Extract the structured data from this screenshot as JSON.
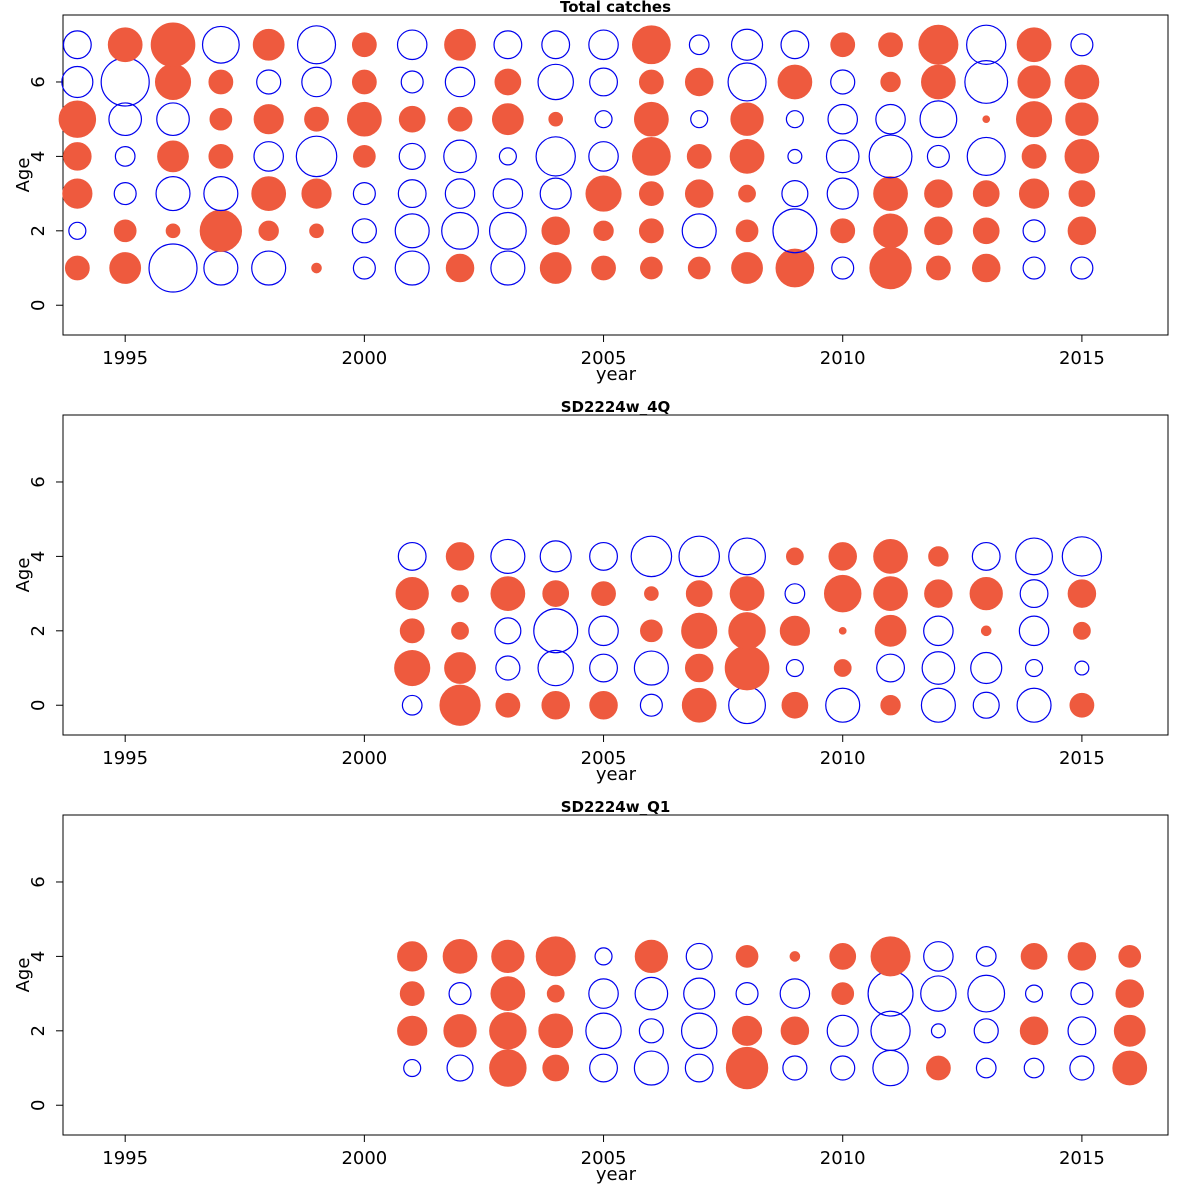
{
  "chart_data": [
    {
      "type": "scatter",
      "title": "Total catches",
      "xlabel": "year",
      "ylabel": "Age",
      "xlim": [
        1993.7,
        2016.8
      ],
      "ylim": [
        -0.8,
        7.8
      ],
      "xticks": [
        1995,
        2000,
        2005,
        2010,
        2015
      ],
      "yticks": [
        0,
        2,
        4,
        6
      ],
      "encoding": "bubble area ~ |residual|; filled red-orange = positive, open blue = negative",
      "colors": {
        "positive": "#EE5A3E",
        "negative": "#0000EE"
      },
      "years": [
        1994,
        1995,
        1996,
        1997,
        1998,
        1999,
        2000,
        2001,
        2002,
        2003,
        2004,
        2005,
        2006,
        2007,
        2008,
        2009,
        2010,
        2011,
        2012,
        2013,
        2014,
        2015
      ],
      "ages": [
        1,
        2,
        3,
        4,
        5,
        6,
        7
      ],
      "values": [
        [
          0.6,
          1.0,
          -2.4,
          -1.2,
          -1.2,
          0.1,
          -0.5,
          -1.2,
          0.8,
          -1.2,
          1.0,
          0.6,
          0.5,
          0.5,
          1.0,
          1.5,
          -0.5,
          1.8,
          0.6,
          0.8,
          -0.5,
          -0.5
        ],
        [
          -0.3,
          0.5,
          0.2,
          1.8,
          0.4,
          0.2,
          -0.6,
          -1.2,
          -1.4,
          -1.4,
          0.8,
          0.4,
          0.6,
          -1.2,
          0.5,
          -2.0,
          0.6,
          1.2,
          0.8,
          0.7,
          -0.5,
          0.8
        ],
        [
          0.9,
          -0.5,
          -1.2,
          -1.2,
          1.2,
          0.9,
          -0.5,
          -0.8,
          -0.9,
          -0.9,
          -1.0,
          1.3,
          0.6,
          0.8,
          0.3,
          -0.7,
          -1.0,
          1.2,
          0.8,
          0.7,
          0.9,
          0.7
        ],
        [
          0.8,
          -0.4,
          1.0,
          0.6,
          -0.9,
          -1.7,
          0.5,
          -0.7,
          -1.1,
          -0.3,
          -1.6,
          -0.9,
          1.5,
          0.6,
          1.2,
          -0.2,
          -1.1,
          -1.9,
          -0.5,
          -1.5,
          0.6,
          1.2
        ],
        [
          1.4,
          -1.1,
          -1.1,
          0.5,
          0.9,
          0.6,
          1.2,
          0.7,
          0.6,
          1.0,
          0.2,
          -0.3,
          1.2,
          -0.3,
          1.1,
          -0.3,
          -0.9,
          -0.9,
          -1.4,
          0.05,
          1.3,
          1.1
        ],
        [
          -1.0,
          -2.4,
          1.3,
          0.6,
          -0.6,
          -0.9,
          0.6,
          -0.5,
          -0.9,
          0.7,
          -1.3,
          -0.8,
          0.6,
          0.8,
          -1.5,
          1.2,
          -0.6,
          0.4,
          1.2,
          -1.9,
          1.1,
          1.2
        ],
        [
          -0.8,
          1.2,
          2.0,
          -1.4,
          1.0,
          -1.5,
          0.6,
          -0.9,
          1.0,
          -0.8,
          -0.8,
          -0.9,
          1.5,
          -0.4,
          -1.0,
          -0.8,
          0.6,
          0.6,
          1.6,
          -1.6,
          1.2,
          -0.5
        ]
      ]
    },
    {
      "type": "scatter",
      "title": "SD2224w_4Q",
      "xlabel": "year",
      "ylabel": "Age",
      "xlim": [
        1993.7,
        2016.8
      ],
      "ylim": [
        -0.8,
        7.8
      ],
      "xticks": [
        1995,
        2000,
        2005,
        2010,
        2015
      ],
      "yticks": [
        0,
        2,
        4,
        6
      ],
      "encoding": "bubble area ~ |residual|; filled red-orange = positive, open blue = negative",
      "colors": {
        "positive": "#EE5A3E",
        "negative": "#0000EE"
      },
      "years": [
        2001,
        2002,
        2003,
        2004,
        2005,
        2006,
        2007,
        2008,
        2009,
        2010,
        2011,
        2012,
        2013,
        2014,
        2015
      ],
      "ages": [
        0,
        1,
        2,
        3,
        4
      ],
      "values": [
        [
          -0.4,
          1.7,
          0.6,
          0.8,
          0.8,
          -0.5,
          1.2,
          -1.4,
          0.7,
          -1.2,
          0.4,
          -1.2,
          -0.7,
          -1.2,
          0.6
        ],
        [
          1.3,
          1.0,
          -0.6,
          -1.3,
          -0.8,
          -1.2,
          0.8,
          2.0,
          -0.3,
          0.3,
          -0.8,
          -1.1,
          -1.0,
          -0.3,
          -0.2
        ],
        [
          0.6,
          0.3,
          -0.7,
          -2.0,
          -0.9,
          0.5,
          1.3,
          1.4,
          0.9,
          0.05,
          1.0,
          -0.9,
          0.1,
          -0.9,
          0.3
        ],
        [
          1.1,
          0.3,
          1.2,
          0.7,
          0.6,
          0.2,
          0.7,
          1.2,
          -0.4,
          1.4,
          1.2,
          0.8,
          1.1,
          -0.8,
          0.8
        ],
        [
          -0.8,
          0.8,
          -1.2,
          -1.0,
          -0.8,
          -1.7,
          -1.7,
          -1.4,
          0.3,
          0.8,
          1.2,
          0.4,
          -0.8,
          -1.4,
          -1.6
        ]
      ]
    },
    {
      "type": "scatter",
      "title": "SD2224w_Q1",
      "xlabel": "year",
      "ylabel": "Age",
      "xlim": [
        1993.7,
        2016.8
      ],
      "ylim": [
        -0.8,
        7.8
      ],
      "xticks": [
        1995,
        2000,
        2005,
        2010,
        2015
      ],
      "yticks": [
        0,
        2,
        4,
        6
      ],
      "encoding": "bubble area ~ |residual|; filled red-orange = positive, open blue = negative",
      "colors": {
        "positive": "#EE5A3E",
        "negative": "#0000EE"
      },
      "years": [
        2001,
        2002,
        2003,
        2004,
        2005,
        2006,
        2007,
        2008,
        2009,
        2010,
        2011,
        2012,
        2013,
        2014,
        2015,
        2016
      ],
      "ages": [
        1,
        2,
        3,
        4
      ],
      "values": [
        [
          -0.3,
          -0.7,
          1.4,
          0.7,
          -0.8,
          -1.2,
          -0.8,
          1.8,
          -0.6,
          -0.6,
          -1.3,
          0.6,
          -0.4,
          -0.4,
          -0.6,
          1.2
        ],
        [
          0.9,
          1.1,
          1.4,
          1.2,
          -1.3,
          -0.6,
          -1.3,
          0.9,
          0.8,
          -1.0,
          -1.6,
          -0.2,
          -0.6,
          0.8,
          -0.8,
          1.0
        ],
        [
          0.6,
          -0.5,
          1.2,
          0.3,
          -0.9,
          -1.1,
          -1.0,
          -0.5,
          -0.9,
          0.5,
          -2.1,
          -1.3,
          -1.4,
          -0.3,
          -0.5,
          0.8
        ],
        [
          0.9,
          1.2,
          1.1,
          1.6,
          -0.3,
          1.1,
          -0.7,
          0.5,
          0.1,
          0.7,
          1.6,
          -0.9,
          -0.4,
          0.7,
          0.8,
          0.5
        ]
      ]
    }
  ]
}
